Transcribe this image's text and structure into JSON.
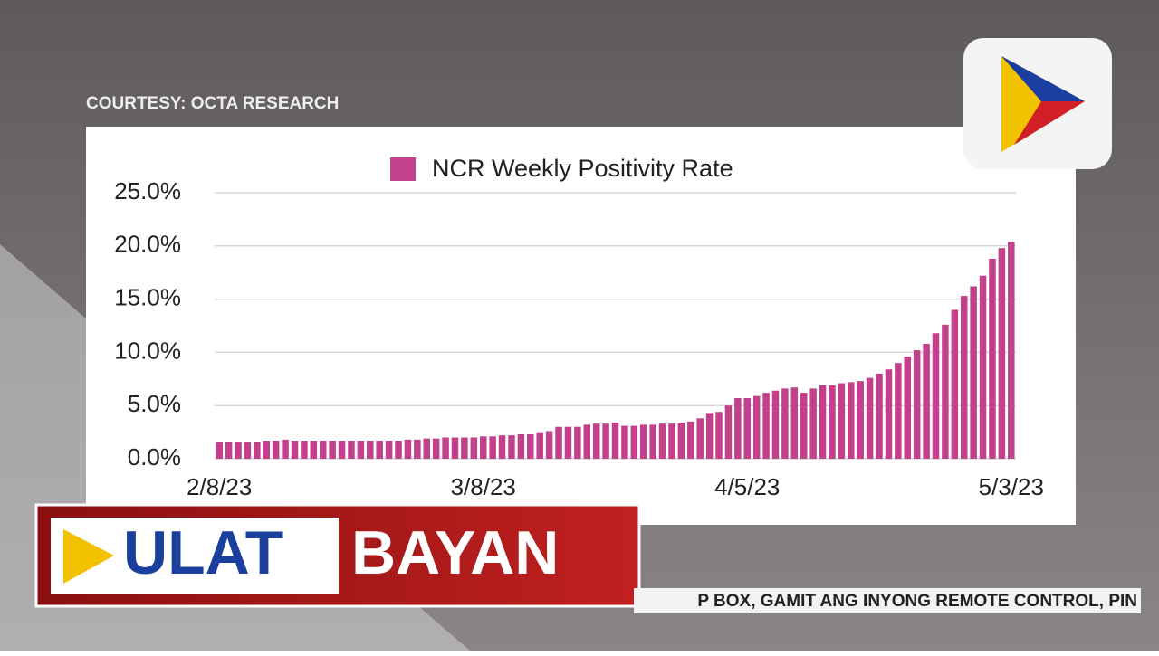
{
  "courtesy": "COURTESY: OCTA RESEARCH",
  "banner": {
    "left": "ULAT",
    "right": "BAYAN"
  },
  "ticker": "P BOX, GAMIT ANG INYONG REMOTE CONTROL, PIN",
  "chart_data": {
    "type": "bar",
    "categories": [
      "2/8/23",
      null,
      null,
      null,
      null,
      null,
      null,
      null,
      null,
      null,
      null,
      null,
      null,
      null,
      null,
      null,
      null,
      null,
      null,
      null,
      null,
      null,
      null,
      null,
      null,
      null,
      null,
      null,
      "3/8/23",
      null,
      null,
      null,
      null,
      null,
      null,
      null,
      null,
      null,
      null,
      null,
      null,
      null,
      null,
      null,
      null,
      null,
      null,
      null,
      null,
      null,
      null,
      null,
      null,
      null,
      null,
      null,
      "4/5/23",
      null,
      null,
      null,
      null,
      null,
      null,
      null,
      null,
      null,
      null,
      null,
      null,
      null,
      null,
      null,
      null,
      null,
      null,
      null,
      null,
      null,
      null,
      null,
      null,
      null,
      null,
      null,
      "5/3/23"
    ],
    "series": [
      {
        "name": "NCR Weekly Positivity Rate",
        "color": "#c2418a",
        "values": [
          1.6,
          1.6,
          1.6,
          1.6,
          1.6,
          1.7,
          1.7,
          1.8,
          1.7,
          1.7,
          1.7,
          1.7,
          1.7,
          1.7,
          1.7,
          1.7,
          1.7,
          1.7,
          1.7,
          1.7,
          1.8,
          1.8,
          1.9,
          1.9,
          2.0,
          2.0,
          2.0,
          2.0,
          2.1,
          2.1,
          2.2,
          2.2,
          2.3,
          2.3,
          2.5,
          2.6,
          3.0,
          3.0,
          3.0,
          3.2,
          3.3,
          3.3,
          3.4,
          3.1,
          3.1,
          3.2,
          3.2,
          3.3,
          3.3,
          3.4,
          3.5,
          3.8,
          4.3,
          4.4,
          5.0,
          5.7,
          5.7,
          5.9,
          6.2,
          6.4,
          6.6,
          6.7,
          6.2,
          6.6,
          6.9,
          6.9,
          7.1,
          7.2,
          7.3,
          7.6,
          8.0,
          8.4,
          9.0,
          9.6,
          10.2,
          10.8,
          11.8,
          12.6,
          14.0,
          15.3,
          16.2,
          17.2,
          18.8,
          19.8,
          20.4
        ]
      }
    ],
    "ylim": [
      0,
      25
    ],
    "yticks": [
      {
        "value": 0,
        "label": "0.0%"
      },
      {
        "value": 5,
        "label": "5.0%"
      },
      {
        "value": 10,
        "label": "10.0%"
      },
      {
        "value": 15,
        "label": "15.0%"
      },
      {
        "value": 20,
        "label": "20.0%"
      },
      {
        "value": 25,
        "label": "25.0%"
      }
    ],
    "grid": true,
    "legend": "top"
  }
}
